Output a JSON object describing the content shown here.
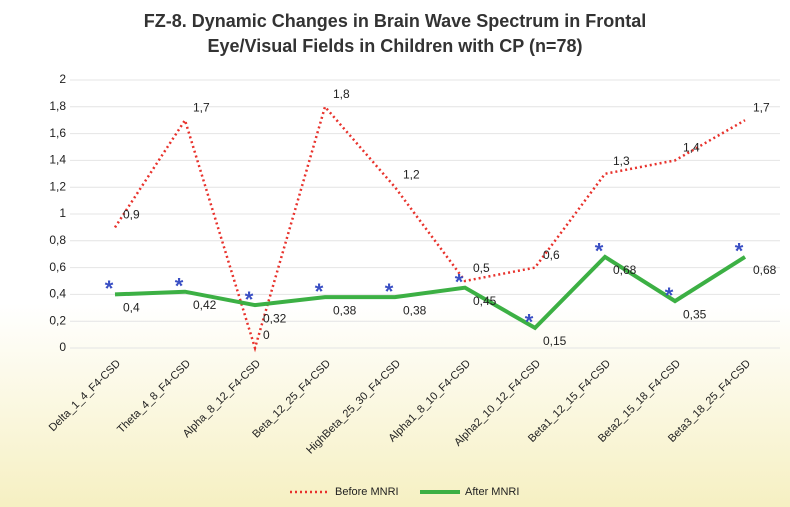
{
  "chart_data": {
    "type": "line",
    "title_lines": [
      "FZ-8. Dynamic Changes in Brain Wave Spectrum in Frontal",
      "Eye/Visual Fields in Children with CP (n=78)"
    ],
    "categories": [
      "Delta_1_4_F4-CSD",
      "Theta_4_8_F4-CSD",
      "Alpha_8_12_F4-CSD",
      "Beta_12_25_F4-CSD",
      "HighBeta_25_30_F4-CSD",
      "Alpha1_8_10_F4-CSD",
      "Alpha2_10_12_F4-CSD",
      "Beta1_12_15_F4-CSD",
      "Beta2_15_18_F4-CSD",
      "Beta3_18_25_F4-CSD"
    ],
    "series": [
      {
        "name": "Before MNRI",
        "color": "#e8322c",
        "dash": true,
        "values": [
          0.9,
          1.7,
          0,
          1.8,
          1.2,
          0.5,
          0.6,
          1.3,
          1.4,
          1.7
        ],
        "value_labels": [
          "0,9",
          "1,7",
          "0",
          "1,8",
          "1,2",
          "0,5",
          "0,6",
          "1,3",
          "1,4",
          "1,7"
        ]
      },
      {
        "name": "After MNRI",
        "color": "#3cb044",
        "marker_color": "#3a4fc4",
        "values": [
          0.4,
          0.42,
          0.32,
          0.38,
          0.38,
          0.45,
          0.15,
          0.68,
          0.35,
          0.68
        ],
        "value_labels": [
          "0,4",
          "0,42",
          "0,32",
          "0,38",
          "0,38",
          "0,45",
          "0,15",
          "0,68",
          "0,35",
          "0,68"
        ]
      }
    ],
    "ylim": [
      0,
      2
    ],
    "yticks": [
      0,
      {
        "value": 0.2,
        "label": "0,2"
      },
      {
        "value": 0.4,
        "label": "0,4"
      },
      {
        "value": 0.6,
        "label": "0,6"
      },
      {
        "value": 0.8,
        "label": "0,8"
      },
      1,
      {
        "value": 1.2,
        "label": "1,2"
      },
      {
        "value": 1.4,
        "label": "1,4"
      },
      {
        "value": 1.6,
        "label": "1,6"
      },
      {
        "value": 1.8,
        "label": "1,8"
      },
      2
    ],
    "grid": true,
    "legend": "bottom"
  }
}
